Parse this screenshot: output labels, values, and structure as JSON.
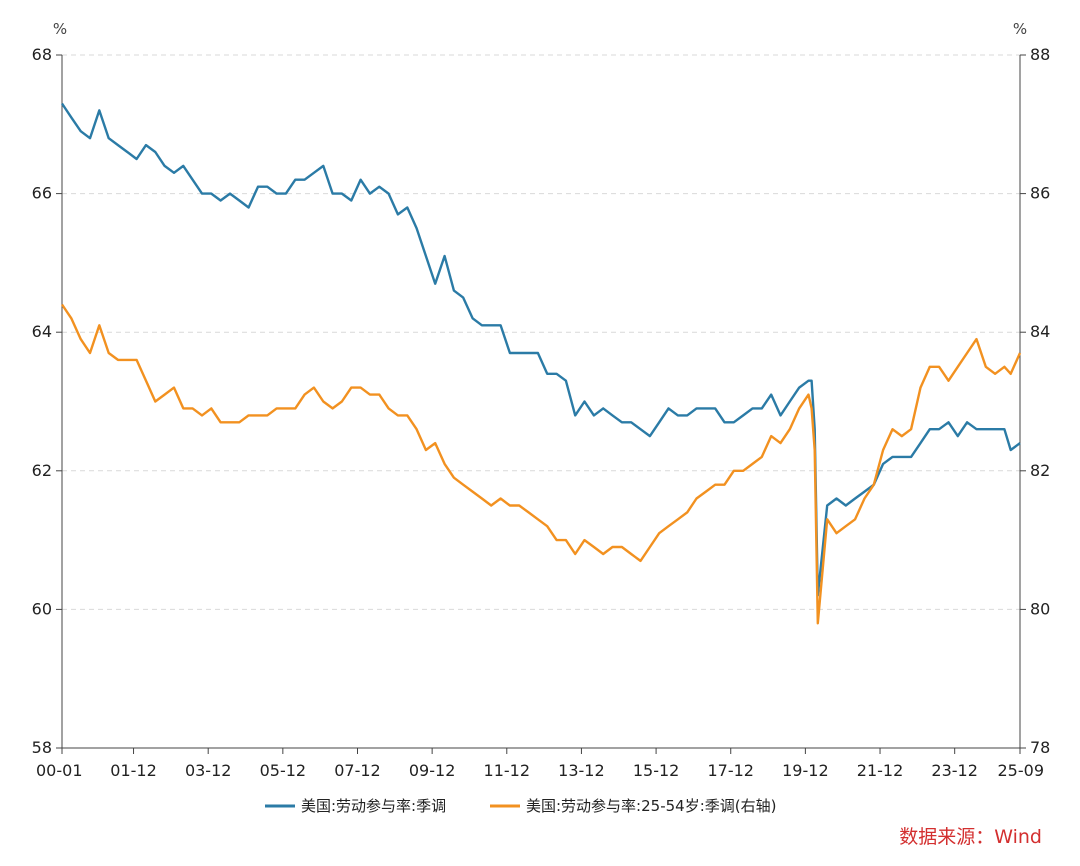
{
  "chart_data": {
    "type": "line",
    "left_unit": "%",
    "right_unit": "%",
    "ylim_left": [
      58,
      68
    ],
    "ylim_right": [
      78,
      88
    ],
    "left_ticks": [
      "58",
      "60",
      "62",
      "64",
      "66",
      "68"
    ],
    "right_ticks": [
      "78",
      "80",
      "82",
      "84",
      "86",
      "88"
    ],
    "x_ticks": [
      "00-01",
      "01-12",
      "03-12",
      "05-12",
      "07-12",
      "09-12",
      "11-12",
      "13-12",
      "15-12",
      "17-12",
      "19-12",
      "21-12",
      "23-12",
      "25-09"
    ],
    "x_range": [
      "2000-01",
      "2025-09"
    ],
    "grid": "horizontal dashed",
    "legend_position": "bottom",
    "series": [
      {
        "name": "美国:劳动参与率:季调",
        "axis": "left",
        "color": "#2b7ba6",
        "points": [
          [
            "2000-01",
            67.3
          ],
          [
            "2000-04",
            67.1
          ],
          [
            "2000-07",
            66.9
          ],
          [
            "2000-10",
            66.8
          ],
          [
            "2001-01",
            67.2
          ],
          [
            "2001-04",
            66.8
          ],
          [
            "2001-07",
            66.7
          ],
          [
            "2001-10",
            66.6
          ],
          [
            "2002-01",
            66.5
          ],
          [
            "2002-04",
            66.7
          ],
          [
            "2002-07",
            66.6
          ],
          [
            "2002-10",
            66.4
          ],
          [
            "2003-01",
            66.3
          ],
          [
            "2003-04",
            66.4
          ],
          [
            "2003-07",
            66.2
          ],
          [
            "2003-10",
            66.0
          ],
          [
            "2004-01",
            66.0
          ],
          [
            "2004-04",
            65.9
          ],
          [
            "2004-07",
            66.0
          ],
          [
            "2004-10",
            65.9
          ],
          [
            "2005-01",
            65.8
          ],
          [
            "2005-04",
            66.1
          ],
          [
            "2005-07",
            66.1
          ],
          [
            "2005-10",
            66.0
          ],
          [
            "2006-01",
            66.0
          ],
          [
            "2006-04",
            66.2
          ],
          [
            "2006-07",
            66.2
          ],
          [
            "2006-10",
            66.3
          ],
          [
            "2007-01",
            66.4
          ],
          [
            "2007-04",
            66.0
          ],
          [
            "2007-07",
            66.0
          ],
          [
            "2007-10",
            65.9
          ],
          [
            "2008-01",
            66.2
          ],
          [
            "2008-04",
            66.0
          ],
          [
            "2008-07",
            66.1
          ],
          [
            "2008-10",
            66.0
          ],
          [
            "2009-01",
            65.7
          ],
          [
            "2009-04",
            65.8
          ],
          [
            "2009-07",
            65.5
          ],
          [
            "2009-10",
            65.1
          ],
          [
            "2010-01",
            64.7
          ],
          [
            "2010-04",
            65.1
          ],
          [
            "2010-07",
            64.6
          ],
          [
            "2010-10",
            64.5
          ],
          [
            "2011-01",
            64.2
          ],
          [
            "2011-04",
            64.1
          ],
          [
            "2011-07",
            64.1
          ],
          [
            "2011-10",
            64.1
          ],
          [
            "2012-01",
            63.7
          ],
          [
            "2012-04",
            63.7
          ],
          [
            "2012-07",
            63.7
          ],
          [
            "2012-10",
            63.7
          ],
          [
            "2013-01",
            63.4
          ],
          [
            "2013-04",
            63.4
          ],
          [
            "2013-07",
            63.3
          ],
          [
            "2013-10",
            62.8
          ],
          [
            "2014-01",
            63.0
          ],
          [
            "2014-04",
            62.8
          ],
          [
            "2014-07",
            62.9
          ],
          [
            "2014-10",
            62.8
          ],
          [
            "2015-01",
            62.7
          ],
          [
            "2015-04",
            62.7
          ],
          [
            "2015-07",
            62.6
          ],
          [
            "2015-10",
            62.5
          ],
          [
            "2016-01",
            62.7
          ],
          [
            "2016-04",
            62.9
          ],
          [
            "2016-07",
            62.8
          ],
          [
            "2016-10",
            62.8
          ],
          [
            "2017-01",
            62.9
          ],
          [
            "2017-04",
            62.9
          ],
          [
            "2017-07",
            62.9
          ],
          [
            "2017-10",
            62.7
          ],
          [
            "2018-01",
            62.7
          ],
          [
            "2018-04",
            62.8
          ],
          [
            "2018-07",
            62.9
          ],
          [
            "2018-10",
            62.9
          ],
          [
            "2019-01",
            63.1
          ],
          [
            "2019-04",
            62.8
          ],
          [
            "2019-07",
            63.0
          ],
          [
            "2019-10",
            63.2
          ],
          [
            "2020-01",
            63.3
          ],
          [
            "2020-02",
            63.3
          ],
          [
            "2020-03",
            62.6
          ],
          [
            "2020-04",
            60.2
          ],
          [
            "2020-07",
            61.5
          ],
          [
            "2020-10",
            61.6
          ],
          [
            "2021-01",
            61.5
          ],
          [
            "2021-04",
            61.6
          ],
          [
            "2021-07",
            61.7
          ],
          [
            "2021-10",
            61.8
          ],
          [
            "2022-01",
            62.1
          ],
          [
            "2022-04",
            62.2
          ],
          [
            "2022-07",
            62.2
          ],
          [
            "2022-10",
            62.2
          ],
          [
            "2023-01",
            62.4
          ],
          [
            "2023-04",
            62.6
          ],
          [
            "2023-07",
            62.6
          ],
          [
            "2023-10",
            62.7
          ],
          [
            "2024-01",
            62.5
          ],
          [
            "2024-04",
            62.7
          ],
          [
            "2024-07",
            62.6
          ],
          [
            "2024-10",
            62.6
          ],
          [
            "2025-01",
            62.6
          ],
          [
            "2025-04",
            62.6
          ],
          [
            "2025-06",
            62.3
          ],
          [
            "2025-09",
            62.4
          ]
        ]
      },
      {
        "name": "美国:劳动参与率:25-54岁:季调(右轴)",
        "axis": "right",
        "color": "#f29120",
        "points": [
          [
            "2000-01",
            84.4
          ],
          [
            "2000-04",
            84.2
          ],
          [
            "2000-07",
            83.9
          ],
          [
            "2000-10",
            83.7
          ],
          [
            "2001-01",
            84.1
          ],
          [
            "2001-04",
            83.7
          ],
          [
            "2001-07",
            83.6
          ],
          [
            "2001-10",
            83.6
          ],
          [
            "2002-01",
            83.6
          ],
          [
            "2002-04",
            83.3
          ],
          [
            "2002-07",
            83.0
          ],
          [
            "2002-10",
            83.1
          ],
          [
            "2003-01",
            83.2
          ],
          [
            "2003-04",
            82.9
          ],
          [
            "2003-07",
            82.9
          ],
          [
            "2003-10",
            82.8
          ],
          [
            "2004-01",
            82.9
          ],
          [
            "2004-04",
            82.7
          ],
          [
            "2004-07",
            82.7
          ],
          [
            "2004-10",
            82.7
          ],
          [
            "2005-01",
            82.8
          ],
          [
            "2005-04",
            82.8
          ],
          [
            "2005-07",
            82.8
          ],
          [
            "2005-10",
            82.9
          ],
          [
            "2006-01",
            82.9
          ],
          [
            "2006-04",
            82.9
          ],
          [
            "2006-07",
            83.1
          ],
          [
            "2006-10",
            83.2
          ],
          [
            "2007-01",
            83.0
          ],
          [
            "2007-04",
            82.9
          ],
          [
            "2007-07",
            83.0
          ],
          [
            "2007-10",
            83.2
          ],
          [
            "2008-01",
            83.2
          ],
          [
            "2008-04",
            83.1
          ],
          [
            "2008-07",
            83.1
          ],
          [
            "2008-10",
            82.9
          ],
          [
            "2009-01",
            82.8
          ],
          [
            "2009-04",
            82.8
          ],
          [
            "2009-07",
            82.6
          ],
          [
            "2009-10",
            82.3
          ],
          [
            "2010-01",
            82.4
          ],
          [
            "2010-04",
            82.1
          ],
          [
            "2010-07",
            81.9
          ],
          [
            "2010-10",
            81.8
          ],
          [
            "2011-01",
            81.7
          ],
          [
            "2011-04",
            81.6
          ],
          [
            "2011-07",
            81.5
          ],
          [
            "2011-10",
            81.6
          ],
          [
            "2012-01",
            81.5
          ],
          [
            "2012-04",
            81.5
          ],
          [
            "2012-07",
            81.4
          ],
          [
            "2012-10",
            81.3
          ],
          [
            "2013-01",
            81.2
          ],
          [
            "2013-04",
            81.0
          ],
          [
            "2013-07",
            81.0
          ],
          [
            "2013-10",
            80.8
          ],
          [
            "2014-01",
            81.0
          ],
          [
            "2014-04",
            80.9
          ],
          [
            "2014-07",
            80.8
          ],
          [
            "2014-10",
            80.9
          ],
          [
            "2015-01",
            80.9
          ],
          [
            "2015-04",
            80.8
          ],
          [
            "2015-07",
            80.7
          ],
          [
            "2015-10",
            80.9
          ],
          [
            "2016-01",
            81.1
          ],
          [
            "2016-04",
            81.2
          ],
          [
            "2016-07",
            81.3
          ],
          [
            "2016-10",
            81.4
          ],
          [
            "2017-01",
            81.6
          ],
          [
            "2017-04",
            81.7
          ],
          [
            "2017-07",
            81.8
          ],
          [
            "2017-10",
            81.8
          ],
          [
            "2018-01",
            82.0
          ],
          [
            "2018-04",
            82.0
          ],
          [
            "2018-07",
            82.1
          ],
          [
            "2018-10",
            82.2
          ],
          [
            "2019-01",
            82.5
          ],
          [
            "2019-04",
            82.4
          ],
          [
            "2019-07",
            82.6
          ],
          [
            "2019-10",
            82.9
          ],
          [
            "2020-01",
            83.1
          ],
          [
            "2020-02",
            82.9
          ],
          [
            "2020-03",
            82.3
          ],
          [
            "2020-04",
            79.8
          ],
          [
            "2020-07",
            81.3
          ],
          [
            "2020-10",
            81.1
          ],
          [
            "2021-01",
            81.2
          ],
          [
            "2021-04",
            81.3
          ],
          [
            "2021-07",
            81.6
          ],
          [
            "2021-10",
            81.8
          ],
          [
            "2022-01",
            82.3
          ],
          [
            "2022-04",
            82.6
          ],
          [
            "2022-07",
            82.5
          ],
          [
            "2022-10",
            82.6
          ],
          [
            "2023-01",
            83.2
          ],
          [
            "2023-04",
            83.5
          ],
          [
            "2023-07",
            83.5
          ],
          [
            "2023-10",
            83.3
          ],
          [
            "2024-01",
            83.5
          ],
          [
            "2024-04",
            83.7
          ],
          [
            "2024-07",
            83.9
          ],
          [
            "2024-10",
            83.5
          ],
          [
            "2025-01",
            83.4
          ],
          [
            "2025-04",
            83.5
          ],
          [
            "2025-06",
            83.4
          ],
          [
            "2025-09",
            83.7
          ]
        ]
      }
    ]
  },
  "source": "数据来源：Wind"
}
